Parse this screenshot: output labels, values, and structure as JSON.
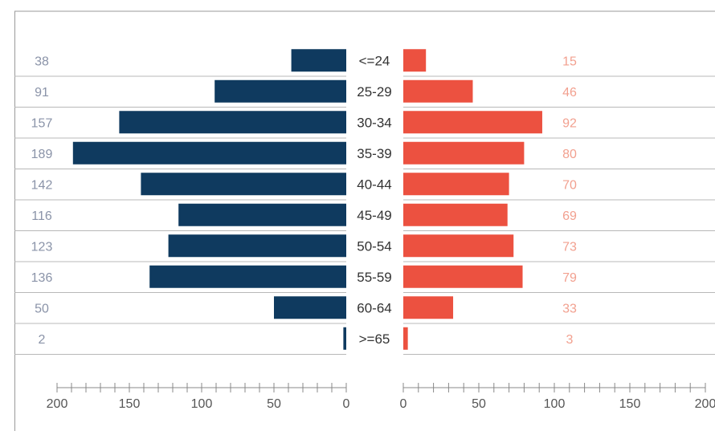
{
  "colors": {
    "left_bar": "#0f3a5f",
    "right_bar": "#ec5140",
    "left_value_text": "#8a93a8",
    "right_value_text": "#f2a08f",
    "category_text": "#333333",
    "axis_text": "#555555",
    "grid": "#b8b8b8",
    "frame": "#9a9a9a"
  },
  "chart_data": {
    "type": "bar",
    "layout": "back-to-back horizontal bars",
    "categories": [
      "<=24",
      "25-29",
      "30-34",
      "35-39",
      "40-44",
      "45-49",
      "50-54",
      "55-59",
      "60-64",
      ">=65"
    ],
    "series": [
      {
        "values": [
          38,
          91,
          157,
          189,
          142,
          116,
          123,
          136,
          50,
          2
        ]
      },
      {
        "values": [
          15,
          46,
          92,
          80,
          70,
          69,
          73,
          79,
          33,
          3
        ]
      }
    ],
    "left_axis": {
      "range": [
        200,
        0
      ],
      "tick_labels": [
        "200",
        "150",
        "100",
        "50",
        "0"
      ],
      "tick_values": [
        200,
        150,
        100,
        50,
        0
      ]
    },
    "right_axis": {
      "range": [
        0,
        200
      ],
      "tick_labels": [
        "0",
        "50",
        "100",
        "150",
        "200"
      ],
      "tick_values": [
        0,
        50,
        100,
        150,
        200
      ]
    },
    "title": "",
    "xlabel": "",
    "ylabel": "",
    "grid": true,
    "legend": "none"
  }
}
